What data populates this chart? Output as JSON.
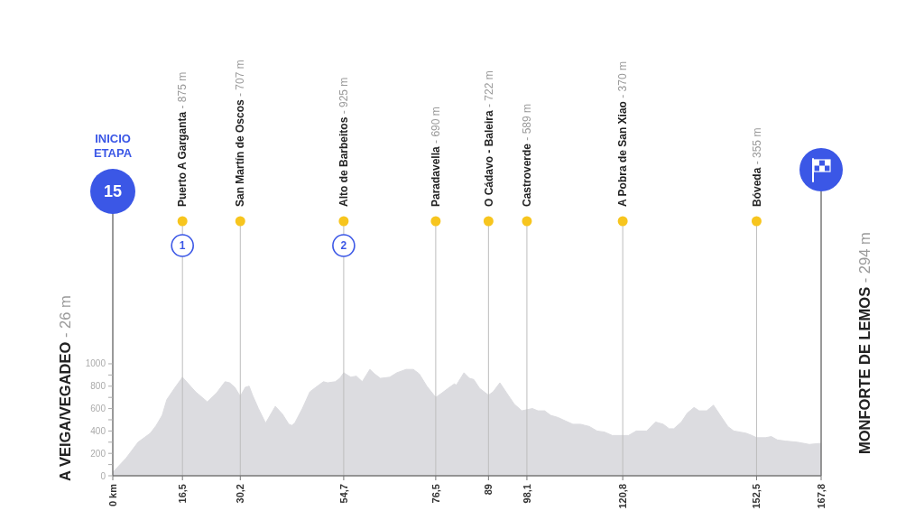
{
  "chart_data": {
    "type": "area",
    "color": "#dcdce0",
    "x": [
      0,
      3.2,
      6,
      8.9,
      10.3,
      11.7,
      12.8,
      14.6,
      16.5,
      19.6,
      22.4,
      24.6,
      26.6,
      27.7,
      28.9,
      30.2,
      31.4,
      32.3,
      33.1,
      34.5,
      36.2,
      38.5,
      40.2,
      41.7,
      42.4,
      43.1,
      44.9,
      46.7,
      48.1,
      49.9,
      50.9,
      52.7,
      53.8,
      54.7,
      56.4,
      57.7,
      59.1,
      60.9,
      62,
      63.4,
      65.6,
      67.3,
      69.5,
      71.2,
      72.6,
      74.4,
      76.5,
      78,
      79.4,
      80.9,
      81.4,
      83.2,
      84.5,
      85.5,
      86.9,
      89,
      90.1,
      91.7,
      93.3,
      95.1,
      96.9,
      98.1,
      99.4,
      100.7,
      102.3,
      103.7,
      105.5,
      107.2,
      109,
      110.8,
      112.9,
      114.7,
      116.5,
      118.3,
      120.8,
      122.2,
      124,
      126.5,
      128.6,
      130.4,
      131.8,
      132.9,
      134.7,
      136.1,
      137.7,
      138.9,
      140.7,
      142.3,
      143.9,
      145.7,
      147.1,
      148.6,
      150,
      151.4,
      152.5,
      154.6,
      156,
      157.4,
      159.3,
      162.1,
      165,
      167.8
    ],
    "values": [
      30,
      160,
      300,
      380,
      450,
      540,
      680,
      780,
      880,
      750,
      660,
      740,
      840,
      830,
      790,
      710,
      790,
      800,
      720,
      600,
      470,
      620,
      550,
      460,
      450,
      470,
      600,
      750,
      790,
      840,
      830,
      840,
      870,
      920,
      880,
      890,
      840,
      950,
      910,
      870,
      880,
      920,
      950,
      950,
      910,
      800,
      700,
      740,
      780,
      820,
      810,
      920,
      870,
      860,
      780,
      720,
      750,
      830,
      740,
      640,
      580,
      590,
      600,
      580,
      580,
      540,
      520,
      490,
      460,
      460,
      440,
      400,
      390,
      360,
      360,
      360,
      400,
      400,
      480,
      460,
      420,
      420,
      480,
      560,
      610,
      580,
      580,
      630,
      540,
      440,
      400,
      390,
      380,
      360,
      340,
      340,
      350,
      320,
      310,
      300,
      280,
      290
    ],
    "xlim": [
      0,
      167.8
    ],
    "xticks": [
      {
        "value": 0,
        "label": "0 km"
      },
      {
        "value": 16.5,
        "label": "16,5"
      },
      {
        "value": 30.2,
        "label": "30,2"
      },
      {
        "value": 54.7,
        "label": "54,7"
      },
      {
        "value": 76.5,
        "label": "76,5"
      },
      89,
      {
        "value": 98.1,
        "label": "98,1"
      },
      {
        "value": 120.8,
        "label": "120,8"
      },
      {
        "value": 152.5,
        "label": "152,5"
      },
      {
        "value": 167.8,
        "label": "167,8"
      }
    ],
    "ylim": [
      0,
      2540
    ],
    "yticks": [
      0,
      {
        "value": 100,
        "label": null
      },
      200,
      {
        "value": 300,
        "label": null
      },
      400,
      {
        "value": 500,
        "label": null
      },
      600,
      {
        "value": 700,
        "label": null
      },
      800,
      {
        "value": 900,
        "label": null
      },
      1000
    ],
    "ref_lines": [
      {
        "axis": "x",
        "value": 16.5,
        "label": "Puerto A Garganta - 875 m",
        "color": "#bdbdbd"
      },
      {
        "axis": "x",
        "value": 30.2,
        "label": "San Martín de Oscos - 707 m",
        "color": "#bdbdbd"
      },
      {
        "axis": "x",
        "value": 54.7,
        "label": "Alto de Barbeitos - 925 m",
        "color": "#bdbdbd"
      },
      {
        "axis": "x",
        "value": 76.5,
        "label": "Paradavella - 690 m",
        "color": "#bdbdbd"
      },
      {
        "axis": "x",
        "value": 89,
        "label": "O Cádavo - Baleira - 722 m",
        "color": "#bdbdbd"
      },
      {
        "axis": "x",
        "value": 98.1,
        "label": "Castroverde - 589 m",
        "color": "#bdbdbd"
      },
      {
        "axis": "x",
        "value": 120.8,
        "label": "A Pobra de San Xiao - 370 m",
        "color": "#bdbdbd"
      },
      {
        "axis": "x",
        "value": 152.5,
        "label": "Bóveda - 355 m",
        "color": "#bdbdbd"
      },
      {
        "axis": "x",
        "value": 167.8,
        "label": "MONFORTE DE LEMOS - 294 m",
        "color": "#6e6e6e"
      }
    ],
    "annotations": [
      "INICIO ETAPA",
      "15",
      "A VEIGA/VEGADEO - 26 m",
      {
        "text": "1",
        "x": 16.5
      },
      {
        "text": "2",
        "x": 54.7
      }
    ]
  }
}
